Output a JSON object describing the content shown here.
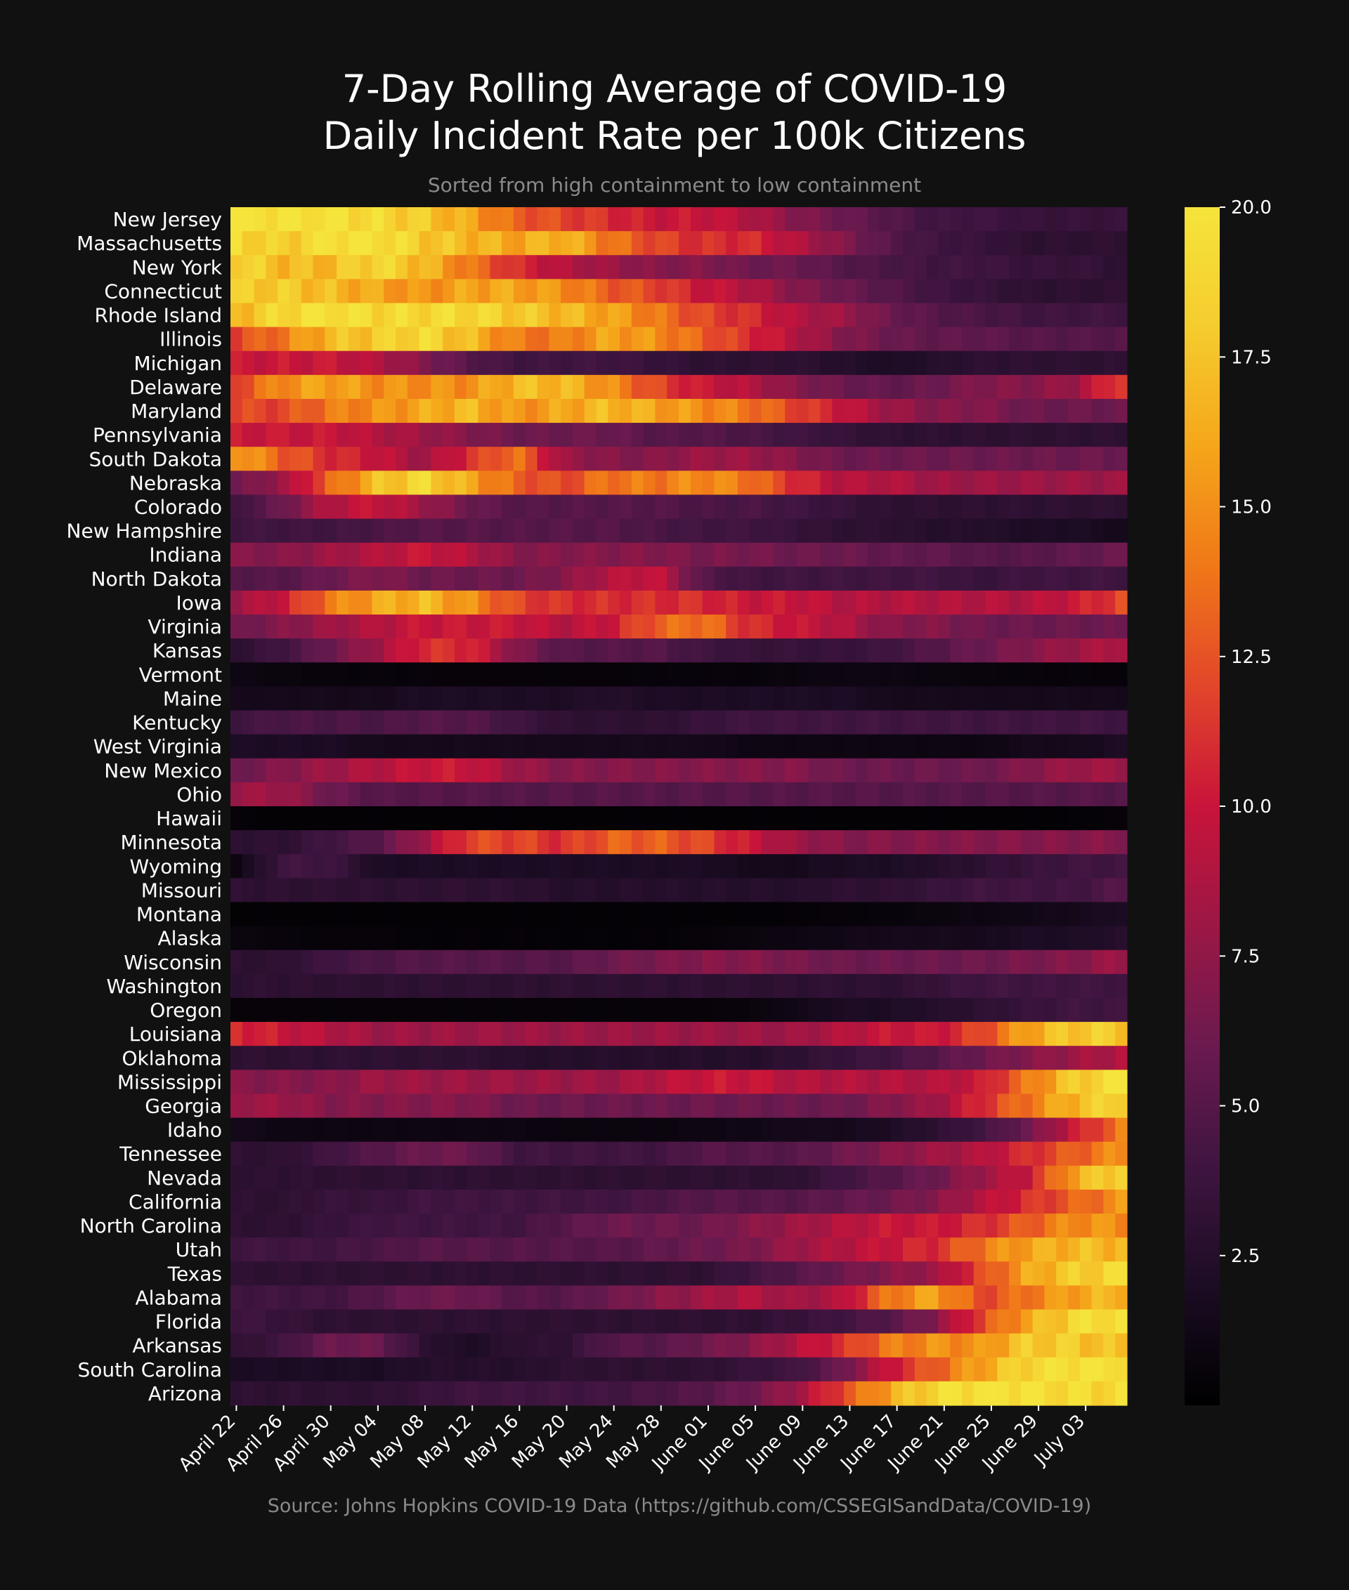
{
  "chart_data": {
    "type": "heatmap",
    "title_lines": [
      "7-Day Rolling Average of COVID-19",
      "Daily Incident Rate per 100k Citizens"
    ],
    "subtitle": "Sorted from high containment to low containment",
    "source": "Source: Johns Hopkins COVID-19 Data (https://github.com/CSSEGISandData/COVID-19)",
    "x_tick_labels": [
      "April 22",
      "April 26",
      "April 30",
      "May 04",
      "May 08",
      "May 12",
      "May 16",
      "May 20",
      "May 24",
      "May 28",
      "June 01",
      "June 05",
      "June 09",
      "June 13",
      "June 17",
      "June 21",
      "June 25",
      "June 29",
      "July 03"
    ],
    "x_tick_day_offsets": [
      0,
      4,
      8,
      12,
      16,
      20,
      24,
      28,
      32,
      36,
      40,
      44,
      48,
      52,
      56,
      60,
      64,
      68,
      72
    ],
    "n_days": 76,
    "colorbar": {
      "min": 0,
      "max": 20,
      "ticks": [
        2.5,
        5.0,
        7.5,
        10.0,
        12.5,
        15.0,
        17.5,
        20.0
      ],
      "tick_labels": [
        "2.5",
        "5.0",
        "7.5",
        "10.0",
        "12.5",
        "15.0",
        "17.5",
        "20.0"
      ],
      "colormap": "inferno-like (black → purple → red → orange → yellow)"
    },
    "colorscale_stops": [
      "#000000",
      "#1c0c24",
      "#3f1540",
      "#6b1a4f",
      "#9c1745",
      "#c8143a",
      "#e2462a",
      "#f07818",
      "#f5a61a",
      "#f5cc2e",
      "#f5e43b"
    ],
    "rows": [
      {
        "state": "New Jersey",
        "knots": [
          20,
          20,
          20,
          19,
          18,
          16,
          13,
          12,
          11,
          10,
          10,
          9,
          7,
          6,
          5,
          4,
          4,
          3.5,
          3.5,
          3.5
        ]
      },
      {
        "state": "Massachusetts",
        "knots": [
          19,
          18,
          20,
          20,
          18,
          17,
          16,
          17,
          14,
          12,
          11,
          11,
          9,
          7,
          5,
          4,
          3.5,
          3,
          3,
          3
        ]
      },
      {
        "state": "New York",
        "knots": [
          19,
          17,
          17,
          19,
          17,
          14,
          11,
          9,
          8,
          7,
          7,
          6,
          6,
          5,
          4.5,
          4,
          4,
          3.5,
          3.5,
          3
        ]
      },
      {
        "state": "Connecticut",
        "knots": [
          18,
          18,
          17,
          16,
          15,
          16,
          16,
          15,
          13,
          12,
          10,
          9,
          7,
          6,
          5,
          4,
          3.5,
          3,
          3,
          3
        ]
      },
      {
        "state": "Rhode Island",
        "knots": [
          17,
          19,
          20,
          19,
          19,
          19,
          18,
          17,
          16,
          14,
          12,
          11,
          9,
          8,
          6,
          5,
          4.5,
          4,
          4,
          4
        ]
      },
      {
        "state": "Illinois",
        "knots": [
          12,
          14,
          17,
          18,
          19,
          17,
          14,
          14,
          16,
          15,
          13,
          11,
          9,
          7,
          6,
          5.5,
          5.5,
          5,
          5,
          5
        ]
      },
      {
        "state": "Michigan",
        "knots": [
          10,
          10,
          10,
          9,
          7,
          5,
          4,
          4,
          4,
          3.5,
          3,
          3,
          3,
          2.5,
          2,
          2.5,
          3,
          3,
          3,
          3
        ]
      },
      {
        "state": "Delaware",
        "knots": [
          12,
          15,
          16,
          15,
          15,
          15,
          17,
          17,
          15,
          12,
          10,
          9,
          7,
          6,
          5.5,
          6,
          7,
          7,
          8,
          12
        ]
      },
      {
        "state": "Maryland",
        "knots": [
          12,
          12,
          14,
          15,
          16,
          17,
          15,
          16,
          17,
          16,
          15,
          14,
          12,
          10,
          8,
          7,
          7,
          6,
          6,
          6
        ]
      },
      {
        "state": "Pennsylvania",
        "knots": [
          10,
          10,
          10,
          9,
          8,
          7,
          6,
          6,
          6,
          5,
          5,
          4.5,
          4,
          3.5,
          3,
          3,
          3,
          3,
          3,
          3
        ]
      },
      {
        "state": "South Dakota",
        "knots": [
          16,
          13,
          11,
          10,
          8,
          11,
          14,
          8,
          7,
          7,
          8,
          8,
          7,
          6,
          6,
          6,
          6,
          6,
          6,
          6
        ]
      },
      {
        "state": "Nebraska",
        "knots": [
          6,
          8,
          13,
          17,
          19,
          16,
          13,
          12,
          14,
          14,
          15,
          14,
          11,
          9,
          9,
          8,
          8,
          8,
          8,
          8
        ]
      },
      {
        "state": "Colorado",
        "knots": [
          4,
          6,
          9,
          10,
          8,
          6,
          5,
          5,
          5,
          5,
          4.5,
          4.5,
          4,
          3.5,
          3,
          3,
          3,
          3,
          3,
          3
        ]
      },
      {
        "state": "New Hampshire",
        "knots": [
          4,
          4,
          4,
          4.5,
          5,
          5,
          5,
          5,
          5,
          4.5,
          4,
          4,
          3.5,
          3,
          3,
          2.5,
          2.5,
          2,
          2,
          1.5
        ]
      },
      {
        "state": "Indiana",
        "knots": [
          7,
          7,
          8,
          9,
          10,
          9,
          7,
          7,
          7,
          7,
          6.5,
          6.5,
          6,
          6,
          5.5,
          5.5,
          5,
          5,
          5.5,
          6
        ]
      },
      {
        "state": "North Dakota",
        "knots": [
          5,
          5,
          6,
          7,
          6,
          6,
          6,
          7,
          9,
          10,
          5,
          4,
          4,
          4,
          4,
          4,
          3.5,
          4,
          4,
          4
        ]
      },
      {
        "state": "Iowa",
        "knots": [
          8,
          10,
          14,
          16,
          17,
          15,
          12,
          11,
          11,
          11,
          11,
          10,
          10,
          9,
          9,
          9,
          9,
          9,
          10,
          12
        ]
      },
      {
        "state": "Virginia",
        "knots": [
          6,
          7,
          8,
          9,
          10,
          10,
          10,
          9,
          10,
          13,
          14,
          11,
          10,
          9,
          7,
          7,
          6,
          6,
          6,
          6
        ]
      },
      {
        "state": "Kansas",
        "knots": [
          3,
          4,
          6,
          8,
          11,
          11,
          7,
          5,
          5,
          5,
          4,
          3.5,
          3.5,
          3.5,
          4,
          5,
          6,
          7,
          8,
          9
        ]
      },
      {
        "state": "Vermont",
        "knots": [
          1,
          0.8,
          0.6,
          0.6,
          0.6,
          0.5,
          0.5,
          0.5,
          0.5,
          0.6,
          0.6,
          0.6,
          0.8,
          1,
          1,
          0.8,
          0.7,
          0.6,
          0.6,
          0.5
        ]
      },
      {
        "state": "Maine",
        "knots": [
          1.5,
          1.5,
          1.5,
          1.5,
          2,
          2,
          2,
          2,
          2.5,
          2,
          2,
          2,
          2,
          2,
          1.5,
          1.5,
          1.5,
          1.5,
          1.5,
          1.5
        ]
      },
      {
        "state": "Kentucky",
        "knots": [
          4,
          4.5,
          4.5,
          4.5,
          5,
          5,
          4,
          3,
          3,
          3,
          3.5,
          4,
          4,
          4,
          4,
          4,
          4,
          4,
          4,
          4
        ]
      },
      {
        "state": "West Virginia",
        "knots": [
          2,
          2,
          2,
          1.5,
          1.5,
          1.5,
          1.5,
          1.5,
          1.5,
          1.5,
          1.5,
          1,
          1,
          1,
          1,
          1,
          1,
          1.5,
          1.5,
          2
        ]
      },
      {
        "state": "New Mexico",
        "knots": [
          6,
          7,
          8,
          9,
          10,
          10,
          8,
          7,
          7,
          7,
          7,
          7,
          7,
          6,
          6,
          6,
          6,
          7,
          8,
          8
        ]
      },
      {
        "state": "Ohio",
        "knots": [
          8,
          8,
          6,
          5,
          5,
          5,
          5,
          5,
          5,
          5,
          5,
          5,
          5,
          5,
          5,
          5,
          5,
          5,
          5,
          5
        ]
      },
      {
        "state": "Hawaii",
        "knots": [
          0.5,
          0.3,
          0.3,
          0.3,
          0.3,
          0.3,
          0.3,
          0.3,
          0.3,
          0.3,
          0.3,
          0.3,
          0.3,
          0.3,
          0.3,
          0.3,
          0.3,
          0.3,
          0.4,
          0.5
        ]
      },
      {
        "state": "Minnesota",
        "knots": [
          3,
          3,
          4,
          5,
          8,
          12,
          12,
          11,
          13,
          13,
          12,
          10,
          8,
          7,
          7,
          7,
          7,
          7,
          7,
          7
        ]
      },
      {
        "state": "Wyoming",
        "knots": [
          1,
          4,
          4,
          2,
          2,
          2,
          2,
          2,
          2,
          2,
          2,
          1.5,
          1.5,
          2,
          2,
          2.5,
          3,
          3.5,
          4,
          4
        ]
      },
      {
        "state": "Missouri",
        "knots": [
          3,
          3,
          3,
          3,
          3,
          3,
          3,
          2.5,
          2.5,
          2.5,
          2.5,
          2.5,
          2.5,
          3,
          3,
          3.5,
          4,
          4,
          4,
          5
        ]
      },
      {
        "state": "Montana",
        "knots": [
          0.3,
          0.3,
          0.3,
          0.3,
          0.3,
          0.3,
          0.3,
          0.3,
          0.3,
          0.3,
          0.3,
          0.3,
          0.4,
          0.5,
          0.6,
          0.8,
          1,
          1.2,
          1.5,
          2
        ]
      },
      {
        "state": "Alaska",
        "knots": [
          0.8,
          0.6,
          0.5,
          0.5,
          0.4,
          0.4,
          0.4,
          0.4,
          0.4,
          0.4,
          0.5,
          0.8,
          1,
          1.2,
          1.5,
          1.5,
          1.5,
          2,
          2,
          2.5
        ]
      },
      {
        "state": "Wisconsin",
        "knots": [
          3,
          3,
          4,
          4.5,
          5,
          5,
          5,
          5,
          6,
          6.5,
          7,
          7,
          6.5,
          6,
          6,
          6,
          6,
          6.5,
          7,
          8
        ]
      },
      {
        "state": "Washington",
        "knots": [
          3,
          3,
          3,
          3,
          3,
          3,
          3,
          3,
          3,
          3,
          3,
          3,
          3,
          3,
          3,
          3.5,
          4,
          4,
          4,
          4
        ]
      },
      {
        "state": "Oregon",
        "knots": [
          0.5,
          0.5,
          0.5,
          0.5,
          0.5,
          0.5,
          0.5,
          0.5,
          0.5,
          0.5,
          0.5,
          0.7,
          1.2,
          2,
          2,
          2.5,
          3,
          3.5,
          4,
          4
        ]
      },
      {
        "state": "Louisiana",
        "knots": [
          11,
          10,
          9,
          8,
          8,
          8,
          8,
          8,
          8,
          8,
          8,
          8,
          8,
          9,
          10,
          10,
          12,
          16,
          18,
          18
        ]
      },
      {
        "state": "Oklahoma",
        "knots": [
          3,
          3,
          3,
          3,
          3,
          3,
          2.5,
          2.5,
          2.5,
          2.5,
          2.5,
          2.5,
          3,
          3.5,
          4,
          5,
          6,
          7,
          8,
          9
        ]
      },
      {
        "state": "Mississippi",
        "knots": [
          7,
          7,
          7,
          8,
          8,
          8,
          8,
          8,
          8,
          9,
          10,
          10,
          9,
          9,
          9,
          9,
          10,
          14,
          18,
          20
        ]
      },
      {
        "state": "Georgia",
        "knots": [
          8,
          8,
          7,
          7,
          7,
          7,
          6,
          6,
          6,
          6,
          6,
          6,
          6,
          6,
          7,
          8,
          11,
          14,
          17,
          19
        ]
      },
      {
        "state": "Idaho",
        "knots": [
          1.5,
          1,
          1,
          1,
          1,
          1,
          1,
          0.8,
          0.8,
          0.8,
          1,
          1.2,
          1.5,
          1.5,
          2,
          3,
          4,
          6,
          10,
          14
        ]
      },
      {
        "state": "Tennessee",
        "knots": [
          3,
          3,
          4,
          5,
          6,
          6,
          4,
          4,
          4,
          4,
          5,
          5,
          5,
          6,
          7,
          8,
          9,
          11,
          13,
          15
        ]
      },
      {
        "state": "Nevada",
        "knots": [
          3,
          3,
          3,
          3,
          3,
          3,
          3,
          3,
          3,
          3,
          3,
          3,
          3,
          4,
          5,
          6,
          8,
          10,
          16,
          19
        ]
      },
      {
        "state": "California",
        "knots": [
          3,
          3,
          3.5,
          3.5,
          4,
          4,
          4,
          4,
          4,
          4.5,
          5,
          5,
          5,
          5.5,
          6,
          7,
          9,
          11,
          13,
          15
        ]
      },
      {
        "state": "North Carolina",
        "knots": [
          3,
          3,
          3.5,
          4,
          4,
          4,
          4,
          5,
          6,
          6,
          6,
          7,
          8,
          9,
          10,
          10,
          11,
          13,
          15,
          15
        ]
      },
      {
        "state": "Utah",
        "knots": [
          4,
          4,
          4,
          4.5,
          5,
          5,
          5,
          5,
          5,
          5.5,
          6,
          6.5,
          8,
          9,
          10,
          11,
          14,
          16,
          17,
          17
        ]
      },
      {
        "state": "Texas",
        "knots": [
          3,
          3,
          3,
          3,
          3,
          3,
          3,
          3,
          3,
          3,
          3,
          4,
          5,
          6,
          7,
          8,
          12,
          16,
          18,
          19
        ]
      },
      {
        "state": "Alabama",
        "knots": [
          4,
          4,
          4,
          5,
          6,
          6,
          5,
          5,
          6,
          7,
          8,
          9,
          8,
          9,
          14,
          16,
          12,
          14,
          16,
          17
        ]
      },
      {
        "state": "Florida",
        "knots": [
          4,
          3.5,
          3,
          3,
          3,
          3,
          3,
          3,
          3,
          3,
          3,
          3,
          3.5,
          4,
          5,
          7,
          12,
          16,
          19,
          20
        ]
      },
      {
        "state": "Arkansas",
        "knots": [
          3,
          4,
          6,
          6,
          3,
          2,
          3,
          3,
          5,
          5,
          6,
          7,
          9,
          11,
          14,
          15,
          15,
          18,
          18,
          17
        ]
      },
      {
        "state": "South Carolina",
        "knots": [
          2,
          2,
          2,
          2,
          2.5,
          2.5,
          2.5,
          3,
          3,
          3,
          3,
          3.5,
          4,
          6,
          10,
          13,
          16,
          19,
          20,
          20
        ]
      },
      {
        "state": "Arizona",
        "knots": [
          3,
          3,
          3,
          3,
          3.5,
          4,
          4,
          4,
          4,
          4.5,
          5,
          6,
          8,
          12,
          16,
          19,
          20,
          20,
          19,
          19
        ]
      }
    ]
  }
}
